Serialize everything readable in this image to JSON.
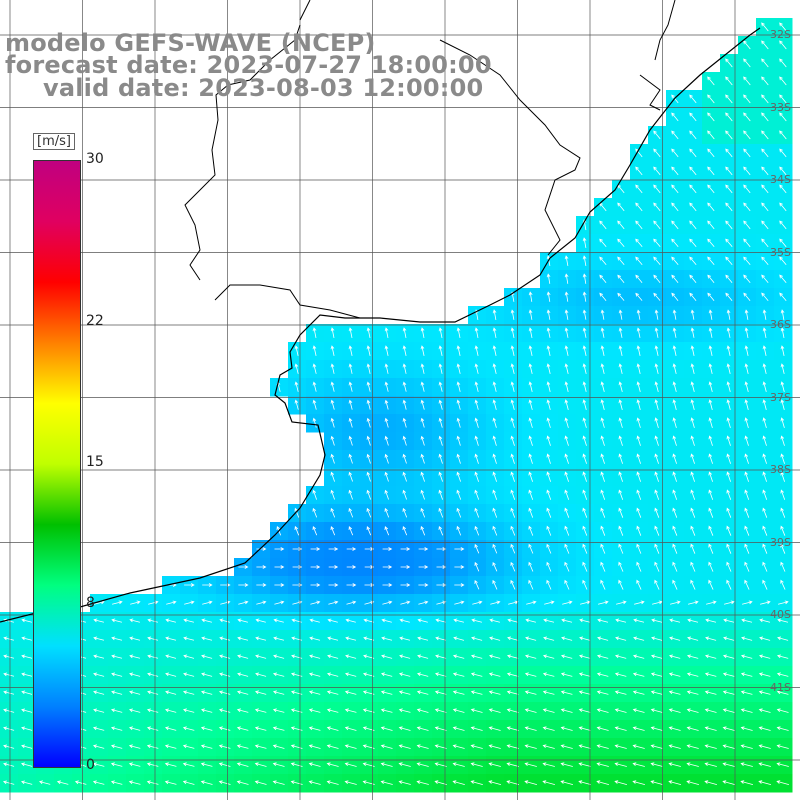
{
  "title": {
    "model": "modelo GEFS-WAVE (NCEP)",
    "forecast": "forecast date: 2023-07-27 18:00:00",
    "valid": "valid date: 2023-08-03 12:00:00"
  },
  "colorbar": {
    "unit": "[m/s]",
    "ticks": [
      "30",
      "22",
      "15",
      "8",
      "0"
    ],
    "tick_values": [
      30,
      22,
      15,
      8,
      0
    ],
    "range": [
      0,
      30
    ],
    "colors": [
      "#0000ff",
      "#0080ff",
      "#00e0ff",
      "#00ff80",
      "#00c000",
      "#c0ff00",
      "#ffff00",
      "#ff8000",
      "#ff0000",
      "#e00060",
      "#c00080"
    ]
  },
  "lat_labels": [
    "32S",
    "33S",
    "34S",
    "35S",
    "36S",
    "37S",
    "38S",
    "39S",
    "40S",
    "41S"
  ],
  "colors": {
    "land": "#ffffff",
    "grid": "#555555",
    "coast": "#000000",
    "arrow": "#ffffff",
    "title": "#8a8a8a"
  },
  "field": {
    "description": "wind speed, approx 8-10 m/s offshore, 5-7 m/s near coast, 10-12 m/s in south"
  }
}
